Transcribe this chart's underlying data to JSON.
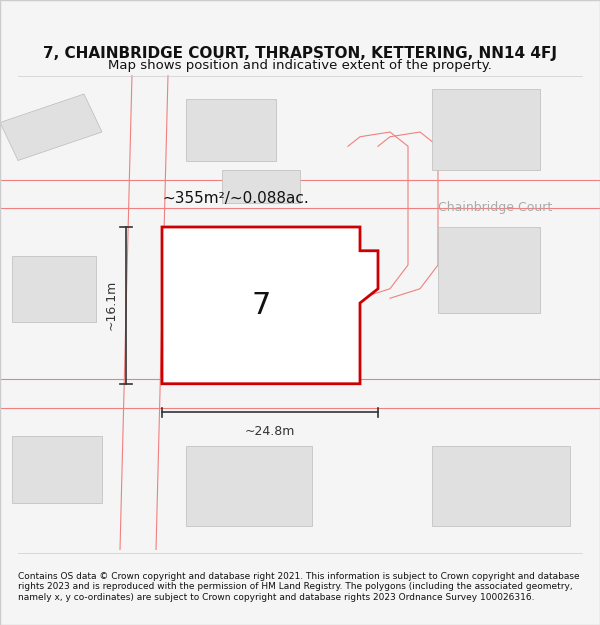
{
  "title": "7, CHAINBRIDGE COURT, THRAPSTON, KETTERING, NN14 4FJ",
  "subtitle": "Map shows position and indicative extent of the property.",
  "footer": "Contains OS data © Crown copyright and database right 2021. This information is subject to Crown copyright and database rights 2023 and is reproduced with the permission of HM Land Registry. The polygons (including the associated geometry, namely x, y co-ordinates) are subject to Crown copyright and database rights 2023 Ordnance Survey 100026316.",
  "area_label": "~355m²/~0.088ac.",
  "street_label": "Chainbridge Court",
  "plot_number": "7",
  "width_label": "~24.8m",
  "height_label": "~16.1m",
  "bg_color": "#f5f5f5",
  "map_bg": "#f0f0f0",
  "plot_fill": "#ffffff",
  "plot_edge_color": "#cc0000",
  "road_outline_color": "#f08080",
  "building_fill": "#e0e0e0",
  "building_stroke": "#cccccc",
  "dim_color": "#333333",
  "title_color": "#111111",
  "footer_color": "#111111"
}
